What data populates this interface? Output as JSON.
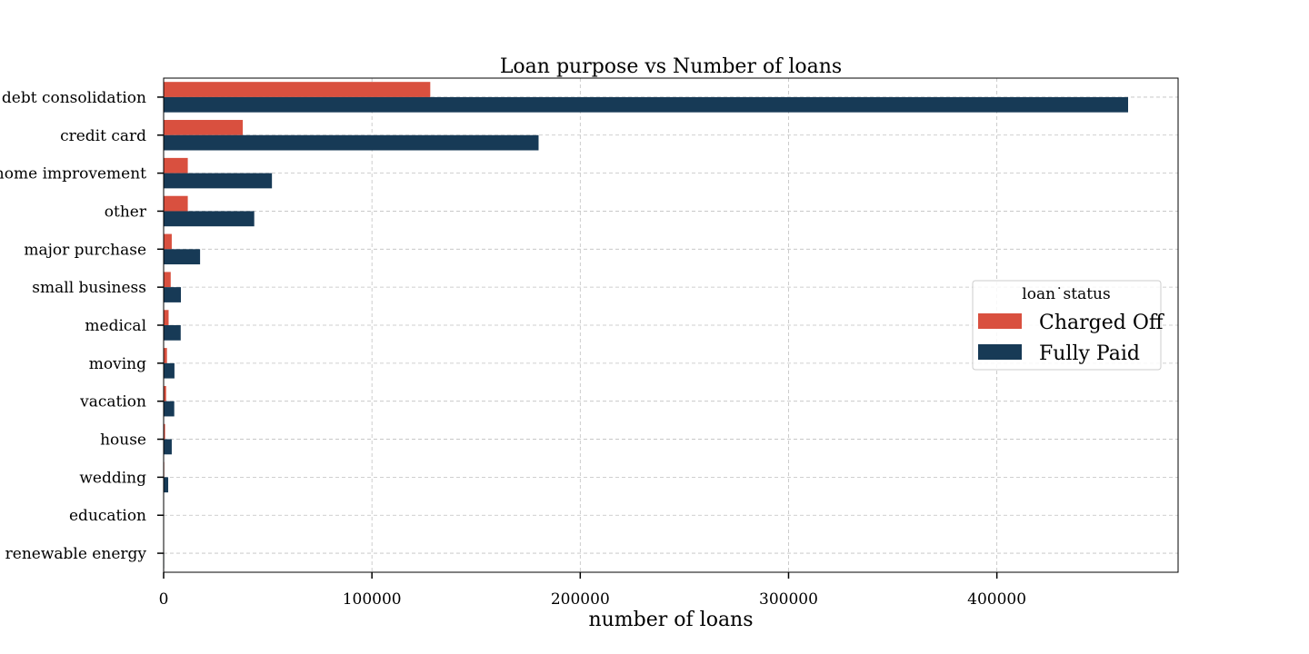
{
  "chart_data": {
    "type": "bar",
    "orientation": "horizontal",
    "title": "Loan purpose vs Number of loans",
    "xlabel": "number of loans",
    "ylabel": "",
    "xlim": [
      0,
      487000
    ],
    "xticks": [
      0,
      100000,
      200000,
      300000,
      400000
    ],
    "xtick_labels": [
      "0",
      "100000",
      "200000",
      "300000",
      "400000"
    ],
    "grid": true,
    "legend": {
      "title": "loan˙status",
      "placement": "center-right"
    },
    "categories": [
      "debt consolidation",
      "credit card",
      "home improvement",
      "other",
      "major purchase",
      "small business",
      "medical",
      "moving",
      "vacation",
      "house",
      "wedding",
      "education",
      "renewable energy"
    ],
    "series": [
      {
        "name": "Charged Off",
        "color": "#d9503f",
        "values": [
          128000,
          38000,
          11600,
          11600,
          3900,
          3400,
          2400,
          1600,
          1200,
          700,
          300,
          60,
          60
        ]
      },
      {
        "name": "Fully Paid",
        "color": "#173a56",
        "values": [
          463000,
          180000,
          52000,
          43500,
          17500,
          8300,
          8200,
          5200,
          5100,
          3900,
          2200,
          150,
          250
        ]
      }
    ]
  }
}
